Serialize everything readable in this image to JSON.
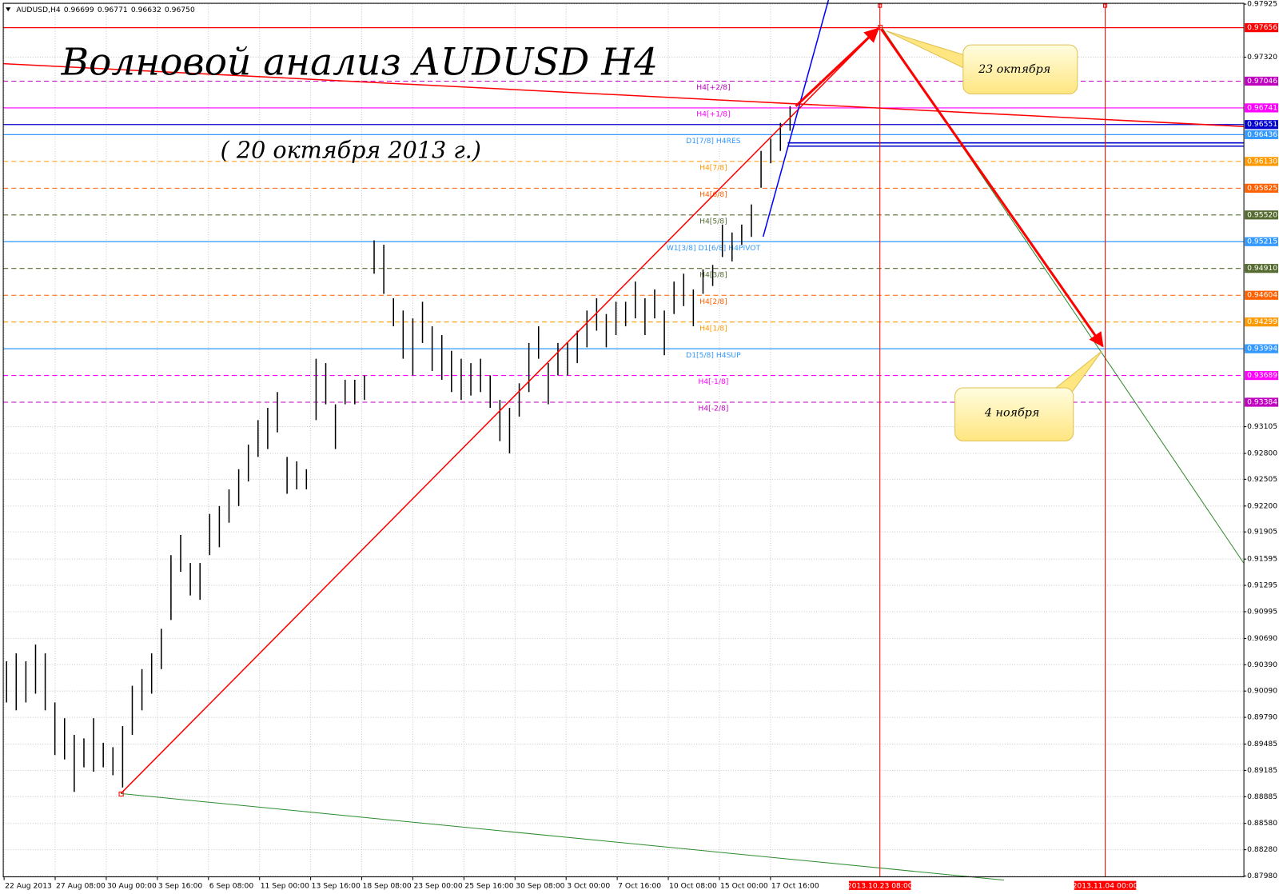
{
  "chart_data": {
    "type": "ohlc",
    "title": "Волновой анализ AUDUSD H4",
    "subtitle": "( 20 октября 2013 г.)",
    "symbol": "AUDUSD,H4",
    "quote": {
      "values": [
        0.96699,
        0.96771,
        0.96632,
        0.9675
      ],
      "value_labels": [
        "0.96699",
        "0.96771",
        "0.96632",
        "0.96750"
      ]
    },
    "ylim": [
      0.8798,
      0.97925
    ],
    "yticks": [
      0.97925,
      {
        "value": 0.9732,
        "label": "0.97320"
      },
      0.93105,
      {
        "value": 0.928,
        "label": "0.92800"
      },
      0.92505,
      {
        "value": 0.922,
        "label": "0.92200"
      },
      0.91905,
      0.91595,
      0.91295,
      0.90995,
      {
        "value": 0.9069,
        "label": "0.90690"
      },
      {
        "value": 0.9039,
        "label": "0.90390"
      },
      {
        "value": 0.9009,
        "label": "0.90090"
      },
      {
        "value": 0.8979,
        "label": "0.89790"
      },
      0.89485,
      0.89185,
      0.88885,
      {
        "value": 0.8858,
        "label": "0.88580"
      },
      {
        "value": 0.8828,
        "label": "0.88280"
      },
      {
        "value": 0.8798,
        "label": "0.87980"
      }
    ],
    "grid": true,
    "categories": [
      "22 Aug 2013",
      "27 Aug 08:00",
      "30 Aug 00:00",
      "3 Sep 16:00",
      "6 Sep 08:00",
      "11 Sep 00:00",
      "13 Sep 16:00",
      "18 Sep 08:00",
      "23 Sep 00:00",
      "25 Sep 16:00",
      "30 Sep 08:00",
      "3 Oct 00:00",
      "7 Oct 16:00",
      "10 Oct 08:00",
      "15 Oct 00:00",
      "17 Oct 16:00"
    ],
    "markers": [
      {
        "label": "2013.10.23 08:00"
      },
      {
        "label": "2013.11.04 00:00"
      }
    ],
    "annotations": [
      {
        "text": "23 октября"
      },
      {
        "text": "4 ноября"
      }
    ],
    "bar_color": "#000000",
    "highs": [
      0.9043,
      0.9052,
      0.9043,
      0.9062,
      0.9052,
      0.8996,
      0.8978,
      0.8959,
      0.8955,
      0.8978,
      0.895,
      0.8945,
      0.8969,
      0.9015,
      0.9034,
      0.9052,
      0.908,
      0.9164,
      0.9187,
      0.9155,
      0.9155,
      0.9211,
      0.922,
      0.9239,
      0.9262,
      0.929,
      0.9318,
      0.9332,
      0.935,
      0.9276,
      0.9271,
      0.9262,
      0.9388,
      0.9383,
      0.9336,
      0.9364,
      0.9364,
      0.9369,
      0.9523,
      0.9518,
      0.9457,
      0.9443,
      0.9434,
      0.9453,
      0.9425,
      0.9415,
      0.9397,
      0.9388,
      0.9383,
      0.9388,
      0.9369,
      0.9341,
      0.9332,
      0.936,
      0.9406,
      0.9425,
      0.9383,
      0.9406,
      0.9406,
      0.942,
      0.9443,
      0.9457,
      0.9439,
      0.9453,
      0.9453,
      0.9476,
      0.9457,
      0.9467,
      0.9443,
      0.9476,
      0.9485,
      0.9467,
      0.949,
      0.9495,
      0.9541,
      0.9532,
      0.9541,
      0.9564,
      0.9625,
      0.9639,
      0.9657,
      0.9676
    ],
    "lows": [
      0.8996,
      0.8987,
      0.8996,
      0.9006,
      0.8987,
      0.8936,
      0.8931,
      0.8894,
      0.8922,
      0.8917,
      0.8922,
      0.8913,
      0.8899,
      0.8959,
      0.8987,
      0.9006,
      0.9034,
      0.909,
      0.9145,
      0.9118,
      0.9113,
      0.9164,
      0.9173,
      0.9201,
      0.922,
      0.9248,
      0.9276,
      0.9285,
      0.9304,
      0.9234,
      0.9239,
      0.9239,
      0.9318,
      0.9336,
      0.9285,
      0.9336,
      0.9336,
      0.9341,
      0.9485,
      0.9462,
      0.9425,
      0.9388,
      0.9369,
      0.9406,
      0.9374,
      0.9364,
      0.935,
      0.9341,
      0.9346,
      0.935,
      0.9332,
      0.9294,
      0.928,
      0.9322,
      0.935,
      0.9388,
      0.9336,
      0.9369,
      0.9369,
      0.9383,
      0.9401,
      0.942,
      0.9401,
      0.9415,
      0.9425,
      0.9434,
      0.9415,
      0.9434,
      0.9392,
      0.9439,
      0.9448,
      0.9425,
      0.9462,
      0.9471,
      0.9504,
      0.9499,
      0.9518,
      0.9527,
      0.9583,
      0.9611,
      0.9625,
      0.9648
    ],
    "levels": [
      {
        "value": 0.97656,
        "color": "#ff0000",
        "dash": false
      },
      {
        "name": "H4[+2/8]",
        "value": 0.97046,
        "color": "#c000c0",
        "dash": true
      },
      {
        "name": "H4[+1/8]",
        "value": 0.96741,
        "color": "#ff00ff",
        "dash": false
      },
      {
        "value": 0.96551,
        "color": "#0000cc",
        "dash": false
      },
      {
        "name": "D1[7/8] H4RES",
        "value": 0.96436,
        "color": "#3399ff",
        "dash": false
      },
      {
        "name": "H4[7/8]",
        "value": 0.9613,
        "value_label": "0.96130",
        "color": "#ff9900",
        "dash": true
      },
      {
        "name": "H4[6/8]",
        "value": 0.95825,
        "color": "#ff6000",
        "dash": true
      },
      {
        "name": "H4[5/8]",
        "value": 0.9552,
        "value_label": "0.95520",
        "color": "#556b2f",
        "dash": true
      },
      {
        "name": "W1[3/8] D1[6/8] H4PIVOT",
        "value": 0.95215,
        "color": "#3399ff",
        "dash": false
      },
      {
        "name": "H4[3/8]",
        "value": 0.9491,
        "value_label": "0.94910",
        "color": "#556b2f",
        "dash": true
      },
      {
        "name": "H4[2/8]",
        "value": 0.94604,
        "color": "#ff6000",
        "dash": true
      },
      {
        "name": "H4[1/8]",
        "value": 0.94299,
        "color": "#ff9900",
        "dash": true
      },
      {
        "name": "D1[5/8] H4SUP",
        "value": 0.93994,
        "color": "#3399ff",
        "dash": false
      },
      {
        "name": "H4[-1/8]",
        "value": 0.93689,
        "color": "#ff00ff",
        "dash": true
      },
      {
        "name": "H4[-2/8]",
        "value": 0.93384,
        "color": "#c000c0",
        "dash": true
      }
    ]
  }
}
